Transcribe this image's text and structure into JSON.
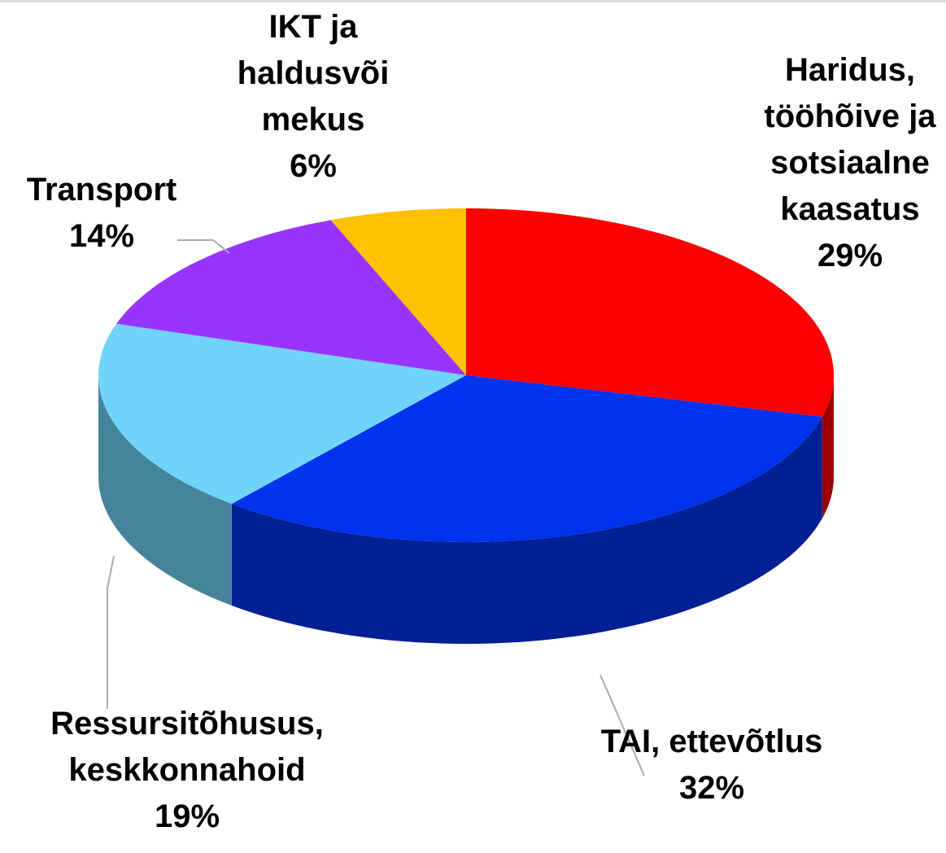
{
  "chart_data": {
    "type": "pie",
    "categories": [
      "Haridus, tööhõive ja sotsiaalne kaasatus",
      "TAI, ettevõtlus",
      "Ressursitõhusus, keskkonnahoid",
      "Transport",
      "IKT ja haldusvõimekus"
    ],
    "values": [
      29,
      32,
      19,
      14,
      6
    ],
    "value_labels": [
      "29%",
      "32%",
      "19%",
      "14%",
      "6%"
    ],
    "colors": [
      "#ff0000",
      "#0033ee",
      "#70d4fa",
      "#9933ff",
      "#ffc000"
    ]
  }
}
